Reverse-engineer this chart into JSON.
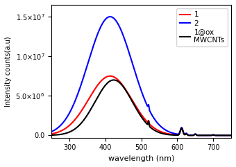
{
  "title": "",
  "xlabel": "wavelength (nm)",
  "ylabel": "Intensity counts(a.u)",
  "xlim": [
    250,
    750
  ],
  "ylim": [
    -300000.0,
    16500000.0
  ],
  "yticks": [
    0.0,
    5000000.0,
    10000000.0,
    15000000.0
  ],
  "colors": {
    "red": "red",
    "blue": "blue",
    "black": "black"
  },
  "line_width": 1.5,
  "background": "white",
  "xticks": [
    300,
    400,
    500,
    600,
    700
  ]
}
